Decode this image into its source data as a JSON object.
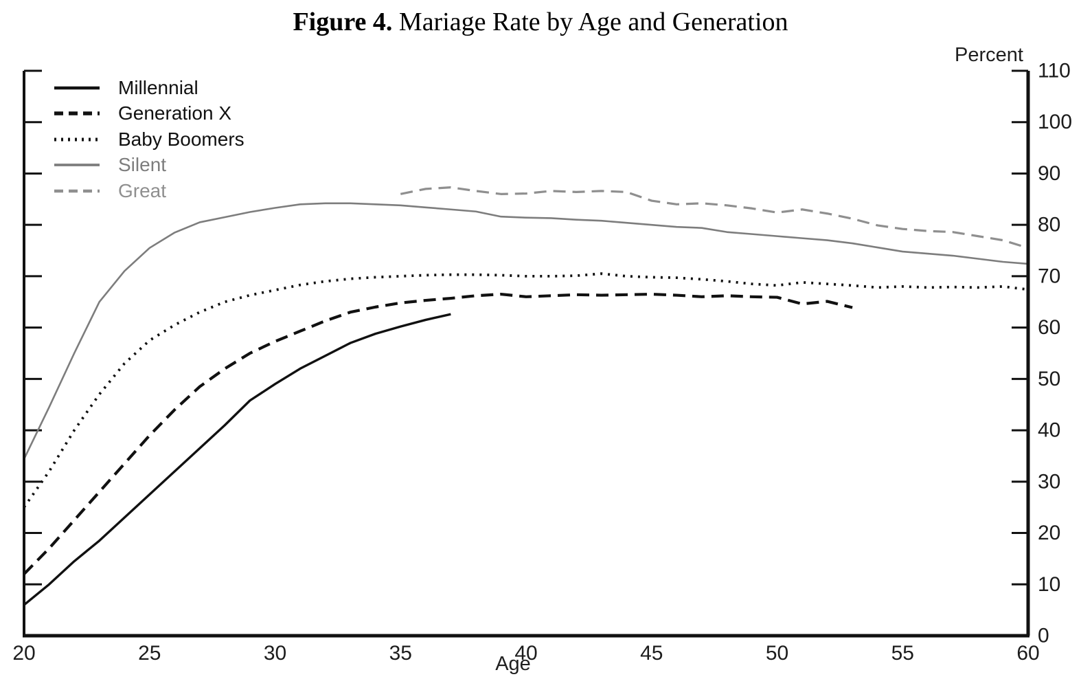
{
  "page": {
    "background": "#ffffff"
  },
  "title": {
    "prefix": "Figure 4.",
    "text": "Mariage Rate by Age and Generation"
  },
  "chart_data": {
    "type": "line",
    "title": "Figure 4. Mariage Rate by Age and Generation",
    "xlabel": "Age",
    "ylabel": "Percent",
    "xlim": [
      20,
      60
    ],
    "ylim": [
      0,
      110
    ],
    "x_ticks": [
      20,
      25,
      30,
      35,
      40,
      45,
      50,
      55,
      60
    ],
    "y_ticks": [
      0,
      10,
      20,
      30,
      40,
      50,
      60,
      70,
      80,
      90,
      100,
      110
    ],
    "grid": false,
    "legend_position": "top-left",
    "axis_color": "#111111",
    "tick_label_color": "#1c1c1c",
    "series": [
      {
        "name": "Millennial",
        "color": "#111111",
        "dash": "solid",
        "width": 3.4,
        "x": [
          20,
          21,
          22,
          23,
          24,
          25,
          26,
          27,
          28,
          29,
          30,
          31,
          32,
          33,
          34,
          35,
          36,
          37
        ],
        "values": [
          6,
          10,
          14.5,
          18.5,
          23,
          27.5,
          32,
          36.5,
          41,
          45.8,
          49,
          52,
          54.5,
          57,
          58.8,
          60.2,
          61.5,
          62.6
        ]
      },
      {
        "name": "Generation X",
        "color": "#111111",
        "dash": "dashed",
        "width": 4.2,
        "x": [
          20,
          21,
          22,
          23,
          24,
          25,
          26,
          27,
          28,
          29,
          30,
          31,
          32,
          33,
          34,
          35,
          36,
          37,
          38,
          39,
          40,
          41,
          42,
          43,
          44,
          45,
          46,
          47,
          48,
          49,
          50,
          51,
          52,
          53
        ],
        "values": [
          12,
          17,
          22.5,
          28,
          33.5,
          39,
          44,
          48.5,
          52,
          55,
          57.3,
          59.3,
          61.3,
          63,
          64,
          64.8,
          65.3,
          65.7,
          66.2,
          66.5,
          66,
          66.2,
          66.4,
          66.3,
          66.4,
          66.5,
          66.3,
          66,
          66.2,
          66,
          65.9,
          64.6,
          65.1,
          63.9
        ]
      },
      {
        "name": "Baby Boomers",
        "color": "#111111",
        "dash": "dotted",
        "width": 3.8,
        "x": [
          20,
          21,
          22,
          23,
          24,
          25,
          26,
          27,
          28,
          29,
          30,
          31,
          32,
          33,
          34,
          35,
          36,
          37,
          38,
          39,
          40,
          41,
          42,
          43,
          44,
          45,
          46,
          47,
          48,
          49,
          50,
          51,
          52,
          53,
          54,
          55,
          56,
          57,
          58,
          59,
          60
        ],
        "values": [
          25,
          32,
          40,
          47,
          53,
          57.5,
          60.5,
          63,
          65,
          66.3,
          67.3,
          68.3,
          69,
          69.5,
          69.8,
          70,
          70.2,
          70.3,
          70.3,
          70.2,
          70,
          70,
          70.1,
          70.5,
          70,
          69.8,
          69.7,
          69.4,
          69,
          68.5,
          68.2,
          68.8,
          68.5,
          68.2,
          67.8,
          68,
          67.8,
          67.9,
          67.8,
          68,
          67.4
        ]
      },
      {
        "name": "Silent",
        "color": "#7d7d7d",
        "dash": "solid",
        "width": 2.6,
        "x": [
          20,
          21,
          22,
          23,
          24,
          25,
          26,
          27,
          28,
          29,
          30,
          31,
          32,
          33,
          34,
          35,
          36,
          37,
          38,
          39,
          40,
          41,
          42,
          43,
          44,
          45,
          46,
          47,
          48,
          49,
          50,
          51,
          52,
          53,
          54,
          55,
          56,
          57,
          58,
          59,
          60
        ],
        "values": [
          34.4,
          44.5,
          55,
          65,
          71,
          75.5,
          78.5,
          80.5,
          81.5,
          82.5,
          83.3,
          84,
          84.2,
          84.2,
          84,
          83.8,
          83.4,
          83,
          82.6,
          81.6,
          81.4,
          81.3,
          81,
          80.8,
          80.4,
          80,
          79.6,
          79.4,
          78.6,
          78.2,
          77.8,
          77.4,
          77,
          76.4,
          75.6,
          74.8,
          74.4,
          74,
          73.4,
          72.8,
          72.4
        ]
      },
      {
        "name": "Great",
        "color": "#8f8f8f",
        "dash": "dashed",
        "width": 3.2,
        "x": [
          35,
          36,
          37,
          38,
          39,
          40,
          41,
          42,
          43,
          44,
          45,
          46,
          47,
          48,
          49,
          50,
          51,
          52,
          53,
          54,
          55,
          56,
          57,
          58,
          59,
          60
        ],
        "values": [
          86,
          87,
          87.3,
          86.6,
          86,
          86.1,
          86.6,
          86.4,
          86.6,
          86.4,
          84.7,
          84,
          84.2,
          83.8,
          83.2,
          82.4,
          83,
          82.2,
          81.2,
          79.9,
          79.2,
          78.8,
          78.6,
          77.8,
          77,
          75.5
        ]
      }
    ]
  }
}
